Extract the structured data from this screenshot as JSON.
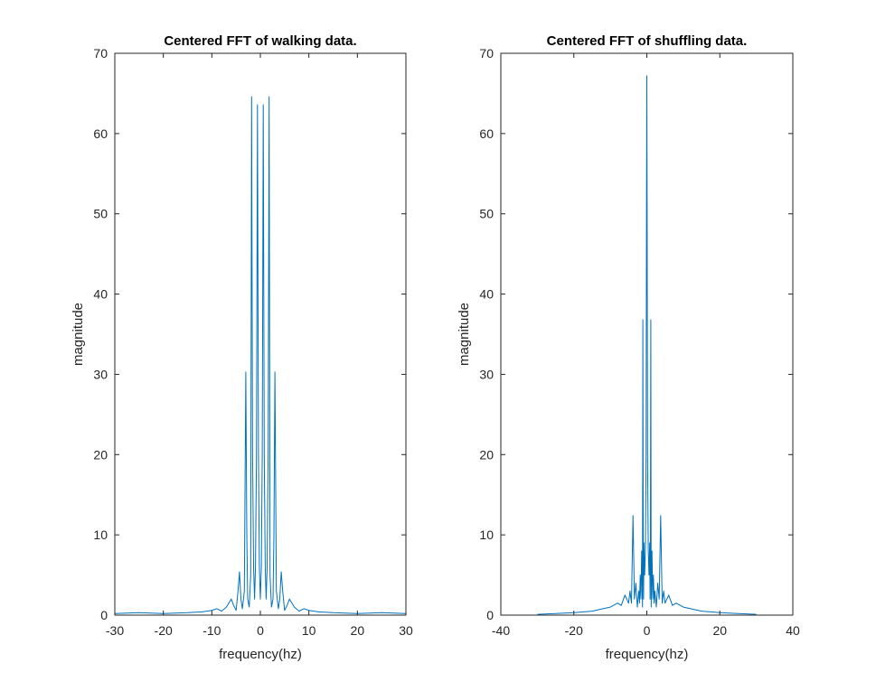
{
  "chart_data": [
    {
      "type": "line",
      "title": "Centered FFT of walking data.",
      "xlabel": "frequency(hz)",
      "ylabel": "magnitude",
      "xlim": [
        -30,
        30
      ],
      "ylim": [
        0,
        70
      ],
      "xticks": [
        -30,
        -20,
        -10,
        0,
        10,
        20,
        30
      ],
      "yticks": [
        0,
        10,
        20,
        30,
        40,
        50,
        60,
        70
      ],
      "grid": false,
      "color": "#0072BD",
      "series": [
        {
          "x": [
            -30,
            -25,
            -20,
            -15,
            -12,
            -10,
            -9,
            -8,
            -7,
            -6,
            -5.5,
            -5,
            -4.6,
            -4.3,
            -4,
            -3.7,
            -3.3,
            -3,
            -2.8,
            -2.6,
            -2.3,
            -2,
            -1.8,
            -1.6,
            -1.4,
            -1.2,
            -1,
            -0.8,
            -0.6,
            -0.4,
            -0.2,
            0,
            0.2,
            0.4,
            0.6,
            0.8,
            1,
            1.2,
            1.4,
            1.6,
            1.8,
            2,
            2.3,
            2.6,
            2.8,
            3,
            3.3,
            3.7,
            4,
            4.3,
            4.6,
            5,
            5.5,
            6,
            7,
            8,
            9,
            10,
            12,
            15,
            20,
            25,
            30
          ],
          "y": [
            0.2,
            0.3,
            0.2,
            0.3,
            0.4,
            0.6,
            0.8,
            0.5,
            1.0,
            2.0,
            1.2,
            0.6,
            3.0,
            5.4,
            2.0,
            0.8,
            3.0,
            30.3,
            10,
            2.0,
            1.0,
            5.0,
            64.6,
            20,
            6.0,
            2.0,
            6.0,
            20,
            63.6,
            20,
            6.0,
            2.0,
            6.0,
            20,
            63.6,
            20,
            6.0,
            2.0,
            6.0,
            20,
            64.6,
            5.0,
            1.0,
            2.0,
            10,
            30.3,
            3.0,
            0.8,
            2.0,
            5.4,
            3.0,
            0.6,
            1.2,
            2.0,
            1.0,
            0.5,
            0.8,
            0.6,
            0.4,
            0.3,
            0.2,
            0.3,
            0.2
          ]
        }
      ]
    },
    {
      "type": "line",
      "title": "Centered FFT of shuffling data.",
      "xlabel": "frequency(hz)",
      "ylabel": "magnitude",
      "xlim": [
        -40,
        40
      ],
      "ylim": [
        0,
        70
      ],
      "xticks": [
        -40,
        -20,
        0,
        20,
        40
      ],
      "yticks": [
        0,
        10,
        20,
        30,
        40,
        50,
        60,
        70
      ],
      "grid": false,
      "color": "#0072BD",
      "series": [
        {
          "x": [
            -30,
            -25,
            -20,
            -15,
            -12,
            -10,
            -8,
            -7,
            -6,
            -5,
            -4.6,
            -4.2,
            -3.8,
            -3.4,
            -3,
            -2.6,
            -2.2,
            -2,
            -1.8,
            -1.6,
            -1.4,
            -1.2,
            -1.1,
            -1,
            -0.9,
            -0.8,
            -0.6,
            -0.4,
            -0.2,
            -0.1,
            0,
            0.1,
            0.2,
            0.4,
            0.6,
            0.8,
            0.9,
            1,
            1.1,
            1.2,
            1.4,
            1.6,
            1.8,
            2,
            2.2,
            2.6,
            3,
            3.4,
            3.8,
            4.2,
            4.6,
            5,
            6,
            7,
            8,
            10,
            12,
            15,
            20,
            25,
            30
          ],
          "y": [
            0.1,
            0.2,
            0.3,
            0.5,
            0.8,
            1.0,
            1.5,
            1.2,
            2.5,
            1.5,
            3.0,
            1.5,
            12.4,
            2.0,
            4.0,
            1.0,
            3.0,
            1.5,
            5.0,
            2.0,
            8.0,
            1.0,
            36.8,
            10,
            2.0,
            9.0,
            5.0,
            8.0,
            20,
            47,
            67.2,
            47,
            20,
            8.0,
            5.0,
            9.0,
            2.0,
            10,
            36.8,
            1.0,
            8.0,
            2.0,
            5.0,
            1.5,
            3.0,
            1.0,
            4.0,
            2.0,
            12.4,
            1.5,
            3.0,
            1.5,
            2.5,
            1.2,
            1.5,
            1.0,
            0.8,
            0.5,
            0.3,
            0.2,
            0.1
          ]
        }
      ]
    }
  ]
}
